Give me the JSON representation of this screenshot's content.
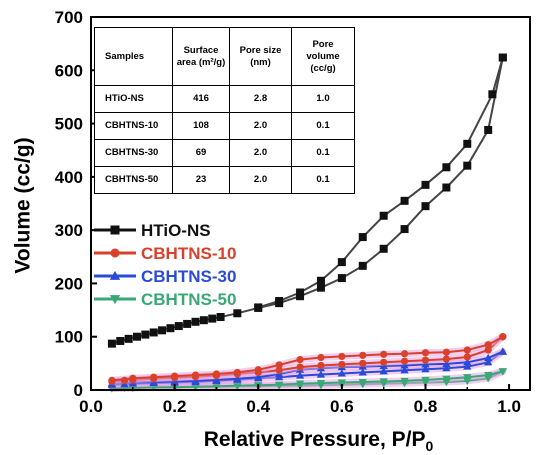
{
  "chart_data": {
    "type": "line",
    "xlabel": "Relative Pressure, P/P",
    "xlabel_sub": "0",
    "ylabel": "Volume (cc/g)",
    "xlim": [
      0.0,
      1.05
    ],
    "ylim": [
      0,
      700
    ],
    "x_ticks": [
      "0.0",
      "0.2",
      "0.4",
      "0.6",
      "0.8",
      "1.0"
    ],
    "x_tick_values": [
      0.0,
      0.2,
      0.4,
      0.6,
      0.8,
      1.0
    ],
    "y_ticks": [
      "0",
      "100",
      "200",
      "300",
      "400",
      "500",
      "600",
      "700"
    ],
    "y_tick_values": [
      0,
      100,
      200,
      300,
      400,
      500,
      600,
      700
    ],
    "legend_position": "middle-left",
    "series": [
      {
        "name": "HTiO-NS",
        "color": "#111111",
        "marker": "square",
        "adsorption": {
          "x": [
            0.05,
            0.07,
            0.09,
            0.11,
            0.13,
            0.15,
            0.17,
            0.19,
            0.21,
            0.23,
            0.25,
            0.27,
            0.29,
            0.31,
            0.35,
            0.4,
            0.45,
            0.5,
            0.55,
            0.6,
            0.65,
            0.7,
            0.75,
            0.8,
            0.85,
            0.9,
            0.95,
            0.985
          ],
          "y": [
            87,
            92,
            96,
            100,
            104,
            108,
            112,
            116,
            120,
            124,
            128,
            131,
            134,
            137,
            144,
            154,
            163,
            176,
            192,
            210,
            233,
            265,
            302,
            345,
            380,
            421,
            488,
            624
          ]
        },
        "desorption": {
          "x": [
            0.985,
            0.96,
            0.9,
            0.85,
            0.8,
            0.75,
            0.7,
            0.65,
            0.6,
            0.55,
            0.5,
            0.45,
            0.4
          ],
          "y": [
            624,
            555,
            462,
            418,
            385,
            355,
            327,
            287,
            240,
            205,
            183,
            167,
            155
          ]
        }
      },
      {
        "name": "CBHTNS-10",
        "color": "#d9412b",
        "marker": "circle",
        "adsorption": {
          "x": [
            0.05,
            0.08,
            0.1,
            0.15,
            0.2,
            0.25,
            0.3,
            0.35,
            0.4,
            0.45,
            0.5,
            0.55,
            0.6,
            0.65,
            0.7,
            0.75,
            0.8,
            0.85,
            0.9,
            0.95,
            0.985
          ],
          "y": [
            16,
            18,
            19,
            21,
            23,
            25,
            27,
            30,
            33,
            37,
            43,
            46,
            48,
            50,
            52,
            54,
            56,
            58,
            62,
            75,
            100
          ]
        },
        "desorption": {
          "x": [
            0.985,
            0.95,
            0.9,
            0.85,
            0.8,
            0.75,
            0.7,
            0.65,
            0.6,
            0.55,
            0.5,
            0.45,
            0.4,
            0.35,
            0.3,
            0.25,
            0.2,
            0.15,
            0.1,
            0.05
          ],
          "y": [
            100,
            85,
            75,
            71,
            70,
            68,
            67,
            65,
            63,
            61,
            57,
            47,
            38,
            33,
            30,
            28,
            26,
            24,
            22,
            18
          ]
        }
      },
      {
        "name": "CBHTNS-30",
        "color": "#2a4bd8",
        "marker": "triangle-up",
        "adsorption": {
          "x": [
            0.05,
            0.08,
            0.1,
            0.15,
            0.2,
            0.25,
            0.3,
            0.35,
            0.4,
            0.45,
            0.5,
            0.55,
            0.6,
            0.65,
            0.7,
            0.75,
            0.8,
            0.85,
            0.9,
            0.95,
            0.985
          ],
          "y": [
            10,
            11,
            12,
            13,
            14,
            15,
            17,
            19,
            22,
            24,
            27,
            29,
            31,
            33,
            35,
            37,
            39,
            41,
            44,
            52,
            72
          ]
        },
        "desorption": {
          "x": [
            0.985,
            0.95,
            0.9,
            0.85,
            0.8,
            0.75,
            0.7,
            0.65,
            0.6,
            0.55,
            0.5,
            0.45,
            0.4,
            0.35,
            0.3,
            0.25,
            0.2,
            0.15,
            0.1,
            0.05
          ],
          "y": [
            72,
            60,
            52,
            49,
            48,
            46,
            45,
            44,
            43,
            41,
            38,
            30,
            24,
            21,
            19,
            17,
            16,
            15,
            14,
            12
          ]
        }
      },
      {
        "name": "CBHTNS-50",
        "color": "#3aa876",
        "marker": "triangle-down",
        "adsorption": {
          "x": [
            0.05,
            0.08,
            0.1,
            0.15,
            0.2,
            0.25,
            0.3,
            0.35,
            0.4,
            0.45,
            0.5,
            0.55,
            0.6,
            0.65,
            0.7,
            0.75,
            0.8,
            0.85,
            0.9,
            0.95,
            0.985
          ],
          "y": [
            3,
            4,
            4,
            5,
            5,
            6,
            6,
            7,
            7,
            8,
            8,
            9,
            10,
            11,
            12,
            13,
            14,
            15,
            17,
            22,
            35
          ]
        },
        "desorption": {
          "x": [
            0.985,
            0.95,
            0.9,
            0.85,
            0.8,
            0.75,
            0.7,
            0.65,
            0.6,
            0.55,
            0.5,
            0.45,
            0.4,
            0.35,
            0.3,
            0.25,
            0.2,
            0.15,
            0.1,
            0.05
          ],
          "y": [
            35,
            28,
            24,
            21,
            19,
            17,
            16,
            15,
            14,
            13,
            12,
            10,
            9,
            8,
            7,
            6,
            5,
            5,
            4,
            3
          ]
        }
      }
    ]
  },
  "inset_table": {
    "headers": [
      "Samples",
      "Surface area (m²/g)",
      "Pore size (nm)",
      "Pore volume (cc/g)"
    ],
    "rows": [
      [
        "HTiO-NS",
        "416",
        "2.8",
        "1.0"
      ],
      [
        "CBHTNS-10",
        "108",
        "2.0",
        "0.1"
      ],
      [
        "CBHTNS-30",
        "69",
        "2.0",
        "0.1"
      ],
      [
        "CBHTNS-50",
        "23",
        "2.0",
        "0.1"
      ]
    ]
  }
}
